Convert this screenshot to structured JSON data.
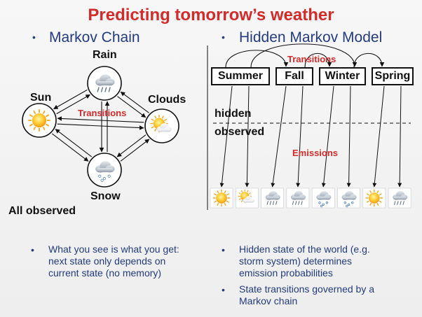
{
  "title": "Predicting tomorrow’s weather",
  "left": {
    "heading": "Markov Chain",
    "states": {
      "rain": "Rain",
      "sun": "Sun",
      "clouds": "Clouds",
      "snow": "Snow"
    },
    "transitions_label": "Transitions",
    "all_observed": "All observed",
    "bullets": [
      "What you see is what you get:",
      "next state only depends on",
      "current state (no memory)"
    ]
  },
  "right": {
    "heading": "Hidden Markov Model",
    "transitions_label": "Transitions",
    "hidden_label": "hidden",
    "observed_label": "observed",
    "emissions_label": "Emissions",
    "seasons": [
      "Summer",
      "Fall",
      "Winter",
      "Spring"
    ],
    "observed_icons": [
      "sun-icon",
      "sun-cloud-icon",
      "rain-cloud-icon",
      "rain-cloud-icon",
      "snow-cloud-icon",
      "snow-cloud-icon",
      "sun-icon",
      "rain-cloud-icon"
    ],
    "bullets": [
      [
        "Hidden state of the world (e.g.",
        "storm system) determines",
        "emission probabilities"
      ],
      [
        "State transitions governed by a",
        "Markov chain"
      ]
    ]
  },
  "colors": {
    "title": "#d42a2a",
    "heading": "#233b80",
    "accent_red": "#d42a2a"
  }
}
